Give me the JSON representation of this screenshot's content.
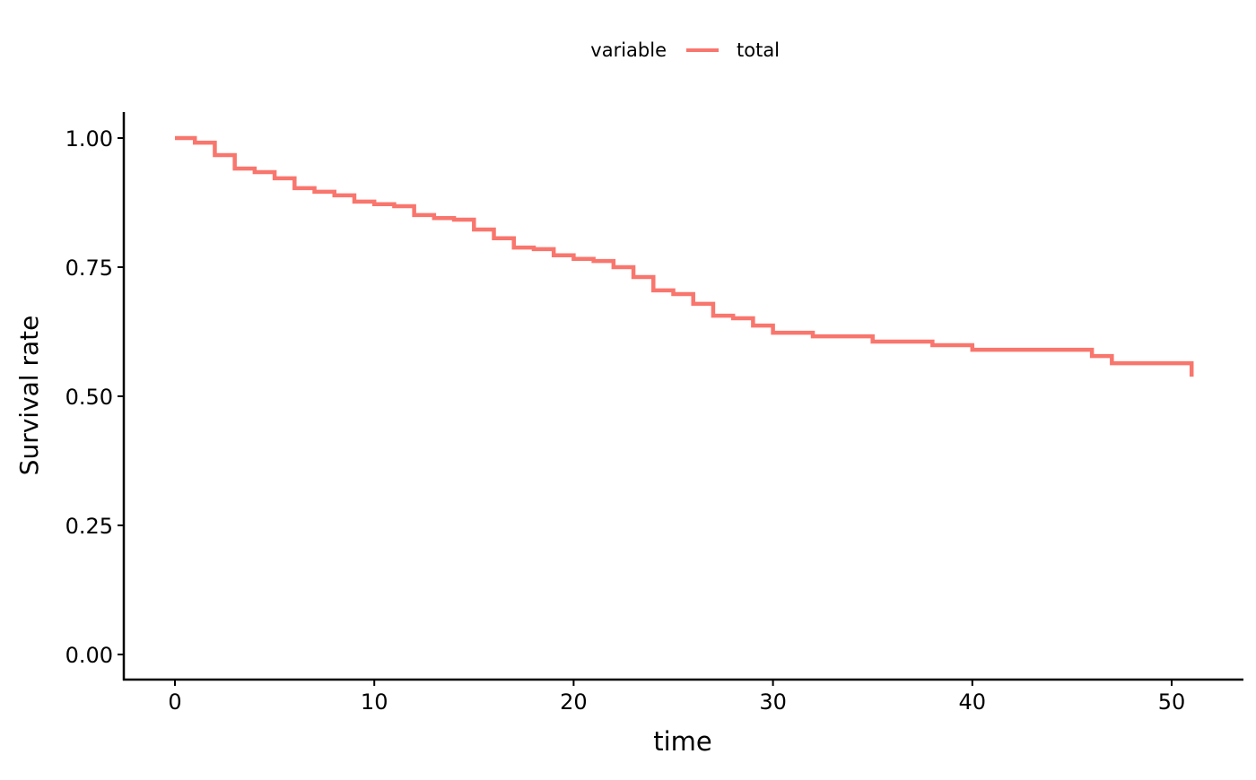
{
  "chart_data": {
    "type": "line",
    "step": true,
    "xlabel": "time",
    "ylabel": "Survival rate",
    "xlim": [
      -2.5,
      53.5
    ],
    "ylim": [
      -0.05,
      1.05
    ],
    "xticks": [
      0,
      10,
      20,
      30,
      40,
      50
    ],
    "xtick_labels": [
      "0",
      "10",
      "20",
      "30",
      "40",
      "50"
    ],
    "yticks": [
      0,
      0.25,
      0.5,
      0.75,
      1.0
    ],
    "ytick_labels": [
      "0.00",
      "0.25",
      "0.50",
      "0.75",
      "1.00"
    ],
    "grid": false,
    "legend": {
      "position": "top",
      "title": "variable",
      "entries": [
        "total"
      ]
    },
    "series": [
      {
        "name": "total",
        "color": "#F8766D",
        "x": [
          0,
          1,
          2,
          3,
          4,
          5,
          6,
          7,
          8,
          9,
          10,
          11,
          12,
          13,
          14,
          15,
          16,
          17,
          18,
          19,
          20,
          21,
          22,
          23,
          24,
          25,
          26,
          27,
          28,
          29,
          30,
          32,
          35,
          38,
          40,
          46,
          47,
          51,
          51
        ],
        "y": [
          1.0,
          0.991,
          0.967,
          0.941,
          0.934,
          0.922,
          0.903,
          0.896,
          0.889,
          0.877,
          0.872,
          0.868,
          0.851,
          0.845,
          0.842,
          0.823,
          0.806,
          0.788,
          0.785,
          0.773,
          0.766,
          0.762,
          0.75,
          0.731,
          0.705,
          0.698,
          0.679,
          0.656,
          0.651,
          0.637,
          0.623,
          0.616,
          0.606,
          0.599,
          0.59,
          0.578,
          0.564,
          0.564,
          0.538
        ]
      }
    ]
  }
}
